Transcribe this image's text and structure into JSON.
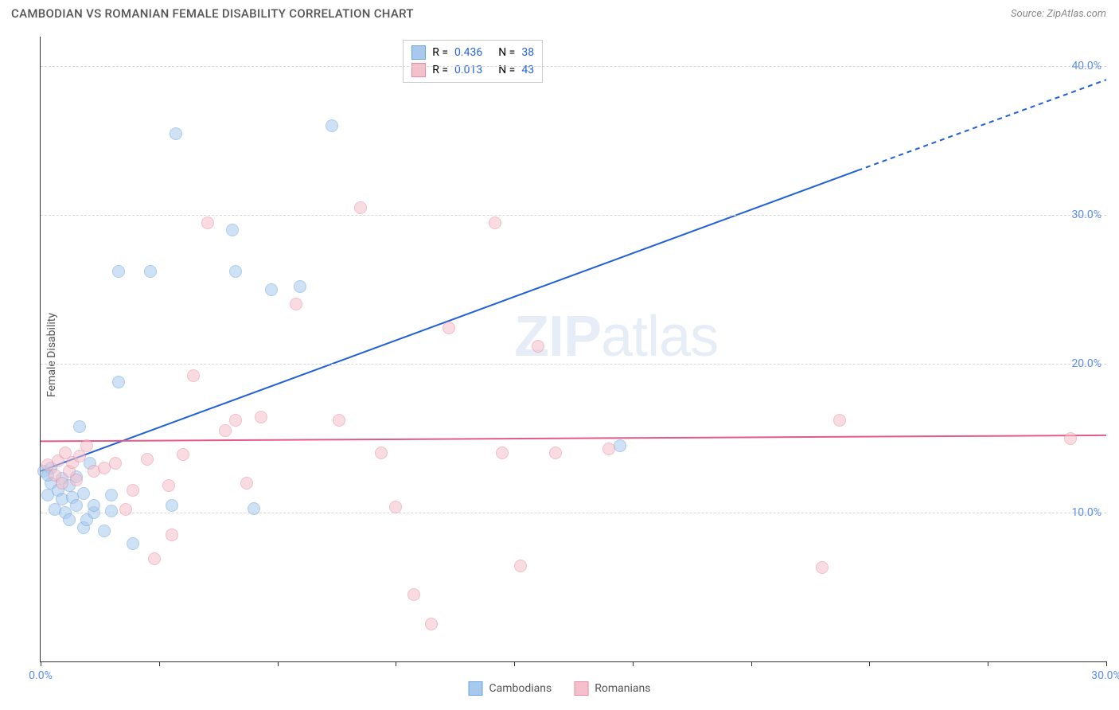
{
  "header": {
    "title": "CAMBODIAN VS ROMANIAN FEMALE DISABILITY CORRELATION CHART",
    "source": "Source: ZipAtlas.com"
  },
  "chart": {
    "type": "scatter",
    "y_axis_label": "Female Disability",
    "xlim": [
      0,
      30
    ],
    "ylim": [
      0,
      42
    ],
    "xticks": [
      0,
      3.33,
      6.67,
      10,
      13.33,
      16.67,
      20,
      23.33,
      26.67,
      30
    ],
    "xtick_labels": {
      "0": "0.0%",
      "30": "30.0%"
    },
    "yticks": [
      10,
      20,
      30,
      40
    ],
    "ytick_labels": [
      "10.0%",
      "20.0%",
      "30.0%",
      "40.0%"
    ],
    "background_color": "#ffffff",
    "grid_color": "#d8d8d8",
    "axis_color": "#333333",
    "tick_label_color": "#5b8def",
    "series": [
      {
        "name": "Cambodians",
        "fill": "#a7c9ed",
        "stroke": "#6ba3e0",
        "fill_opacity": 0.55,
        "marker_radius": 8,
        "R": "0.436",
        "N": "38",
        "trend": {
          "x1": 0,
          "y1": 12.8,
          "x2": 23,
          "y2": 33,
          "extend_x2": 30,
          "extend_y2": 39.1,
          "color": "#1f5fd9",
          "width": 2
        },
        "points": [
          [
            0.1,
            12.8
          ],
          [
            0.2,
            11.2
          ],
          [
            0.3,
            13.0
          ],
          [
            0.3,
            12.0
          ],
          [
            0.4,
            10.2
          ],
          [
            0.5,
            11.5
          ],
          [
            0.6,
            10.9
          ],
          [
            0.6,
            12.3
          ],
          [
            0.7,
            10.0
          ],
          [
            0.8,
            11.8
          ],
          [
            0.8,
            9.5
          ],
          [
            0.9,
            11.0
          ],
          [
            1.0,
            12.4
          ],
          [
            1.0,
            10.5
          ],
          [
            1.1,
            15.8
          ],
          [
            1.2,
            9.0
          ],
          [
            1.2,
            11.3
          ],
          [
            1.3,
            9.5
          ],
          [
            1.4,
            13.3
          ],
          [
            1.5,
            10.0
          ],
          [
            1.5,
            10.5
          ],
          [
            1.8,
            8.8
          ],
          [
            2.0,
            10.1
          ],
          [
            2.0,
            11.2
          ],
          [
            2.2,
            18.8
          ],
          [
            2.2,
            26.2
          ],
          [
            2.6,
            7.9
          ],
          [
            3.1,
            26.2
          ],
          [
            3.7,
            10.5
          ],
          [
            3.8,
            35.5
          ],
          [
            5.4,
            29.0
          ],
          [
            5.5,
            26.2
          ],
          [
            6.0,
            10.3
          ],
          [
            6.5,
            25.0
          ],
          [
            7.3,
            25.2
          ],
          [
            8.2,
            36.0
          ],
          [
            16.3,
            14.5
          ],
          [
            0.2,
            12.5
          ]
        ]
      },
      {
        "name": "Romanians",
        "fill": "#f4c0cb",
        "stroke": "#e98aa2",
        "fill_opacity": 0.55,
        "marker_radius": 8,
        "R": "0.013",
        "N": "43",
        "trend": {
          "x1": 0,
          "y1": 14.8,
          "x2": 30,
          "y2": 15.2,
          "color": "#e25b88",
          "width": 2
        },
        "points": [
          [
            0.2,
            13.2
          ],
          [
            0.4,
            12.5
          ],
          [
            0.5,
            13.5
          ],
          [
            0.6,
            12.0
          ],
          [
            0.7,
            14.0
          ],
          [
            0.8,
            12.8
          ],
          [
            0.9,
            13.4
          ],
          [
            1.0,
            12.2
          ],
          [
            1.1,
            13.8
          ],
          [
            1.3,
            14.5
          ],
          [
            1.5,
            12.8
          ],
          [
            1.8,
            13.0
          ],
          [
            2.1,
            13.3
          ],
          [
            2.4,
            10.2
          ],
          [
            2.6,
            11.5
          ],
          [
            3.0,
            13.6
          ],
          [
            3.2,
            6.9
          ],
          [
            3.6,
            11.8
          ],
          [
            3.7,
            8.5
          ],
          [
            4.0,
            13.9
          ],
          [
            4.3,
            19.2
          ],
          [
            4.7,
            29.5
          ],
          [
            5.2,
            15.5
          ],
          [
            5.5,
            16.2
          ],
          [
            5.8,
            12.0
          ],
          [
            6.2,
            16.4
          ],
          [
            7.2,
            24.0
          ],
          [
            8.4,
            16.2
          ],
          [
            9.0,
            30.5
          ],
          [
            9.6,
            14.0
          ],
          [
            10.0,
            10.4
          ],
          [
            10.5,
            4.5
          ],
          [
            11.0,
            2.5
          ],
          [
            11.5,
            22.4
          ],
          [
            12.8,
            29.5
          ],
          [
            13.0,
            14.0
          ],
          [
            13.5,
            6.4
          ],
          [
            14.0,
            21.2
          ],
          [
            14.5,
            14.0
          ],
          [
            16.0,
            14.3
          ],
          [
            22.0,
            6.3
          ],
          [
            22.5,
            16.2
          ],
          [
            29.0,
            15.0
          ]
        ]
      }
    ],
    "legend_bottom": [
      {
        "label": "Cambodians",
        "fill": "#a7c9ed",
        "stroke": "#6ba3e0"
      },
      {
        "label": "Romanians",
        "fill": "#f4c0cb",
        "stroke": "#e98aa2"
      }
    ],
    "watermark": {
      "zip": "ZIP",
      "atlas": "atlas"
    }
  }
}
